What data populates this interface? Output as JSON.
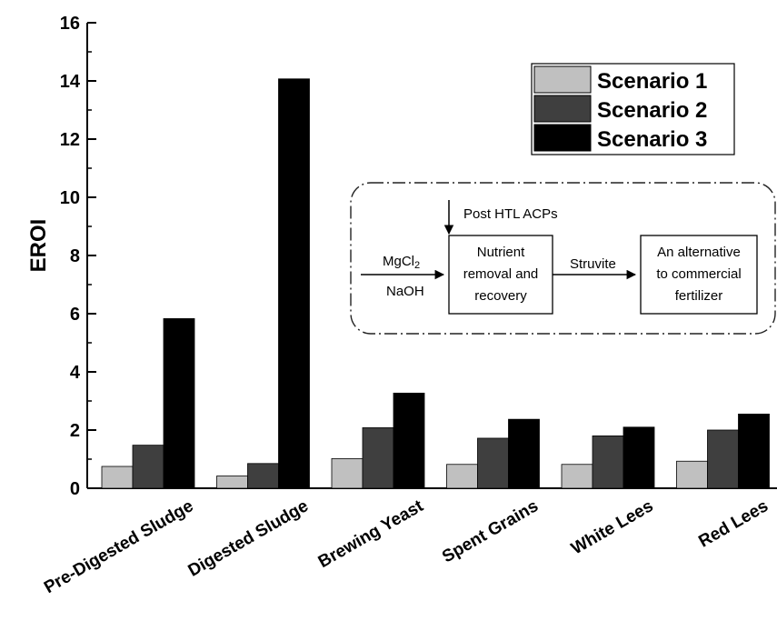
{
  "chart_data": {
    "type": "bar",
    "title": "",
    "xlabel": "",
    "ylabel": "EROI",
    "ylim": [
      0,
      16
    ],
    "yticks": [
      "0",
      "2",
      "4",
      "6",
      "8",
      "10",
      "12",
      "14",
      "16"
    ],
    "categories": [
      "Pre-Digested Sludge",
      "Digested Sludge",
      "Brewing Yeast",
      "Spent Grains",
      "White Lees",
      "Red Lees"
    ],
    "series": [
      {
        "name": "Scenario 1",
        "color": "#c0c0c0",
        "values": [
          0.75,
          0.42,
          1.02,
          0.82,
          0.82,
          0.93
        ]
      },
      {
        "name": "Scenario 2",
        "color": "#3f3f3f",
        "values": [
          1.48,
          0.85,
          2.08,
          1.72,
          1.8,
          2.0
        ]
      },
      {
        "name": "Scenario 3",
        "color": "#000000",
        "values": [
          5.83,
          14.07,
          3.27,
          2.37,
          2.1,
          2.55
        ]
      }
    ],
    "grid": false,
    "legend": "top-right",
    "inset": {
      "input_top": "Post HTL ACPs",
      "input_left_1": "MgCl",
      "input_left_1_sub": "2",
      "input_left_2": "NaOH",
      "process_box": [
        "Nutrient",
        "removal and",
        "recovery"
      ],
      "arrow_label": "Struvite",
      "output_box": [
        "An alternative",
        "to  commercial",
        "fertilizer"
      ]
    }
  }
}
